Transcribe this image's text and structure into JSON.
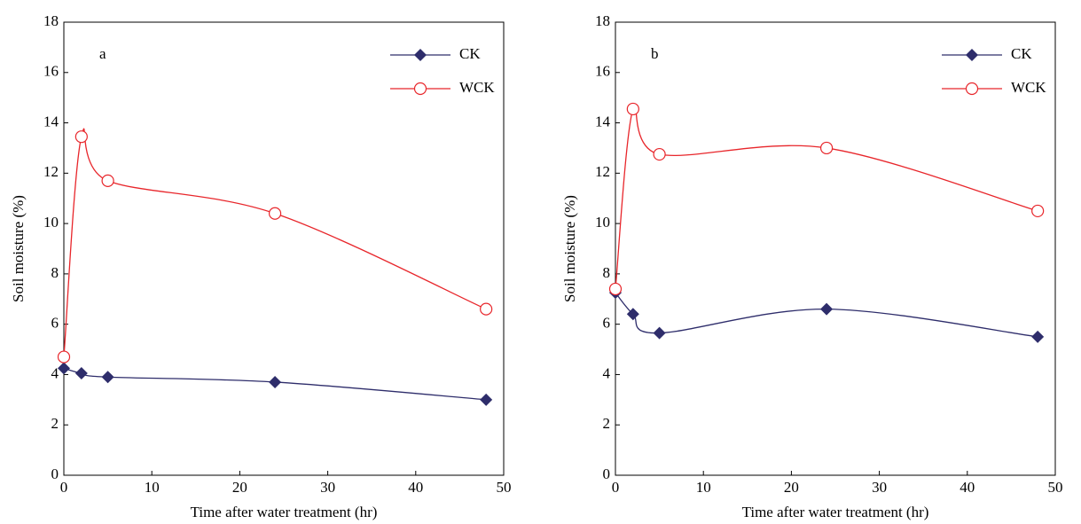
{
  "chart_data": [
    {
      "type": "line",
      "annotation": "a",
      "x": [
        0,
        2,
        5,
        24,
        48
      ],
      "series": [
        {
          "name": "CK",
          "color": "#2e2d6b",
          "marker": "diamond",
          "values": [
            4.25,
            4.05,
            3.9,
            3.7,
            3.0
          ]
        },
        {
          "name": "WCK",
          "color": "#e8262b",
          "marker": "open-circle",
          "values": [
            4.7,
            13.45,
            11.7,
            10.4,
            6.6
          ]
        }
      ],
      "xlim": [
        0,
        50
      ],
      "xticks": [
        0,
        10,
        20,
        30,
        40,
        50
      ],
      "ylim": [
        0,
        18
      ],
      "yticks": [
        0,
        2,
        4,
        6,
        8,
        10,
        12,
        14,
        16,
        18
      ],
      "xlabel": "Time after water treatment (hr)",
      "ylabel": "Soil moisture (%)",
      "legend": "upper right"
    },
    {
      "type": "line",
      "annotation": "b",
      "x": [
        0,
        2,
        5,
        24,
        48
      ],
      "series": [
        {
          "name": "CK",
          "color": "#2e2d6b",
          "marker": "diamond",
          "values": [
            7.25,
            6.4,
            5.65,
            6.6,
            5.5
          ]
        },
        {
          "name": "WCK",
          "color": "#e8262b",
          "marker": "open-circle",
          "values": [
            7.4,
            14.55,
            12.75,
            13.0,
            10.5
          ]
        }
      ],
      "xlim": [
        0,
        50
      ],
      "xticks": [
        0,
        10,
        20,
        30,
        40,
        50
      ],
      "ylim": [
        0,
        18
      ],
      "yticks": [
        0,
        2,
        4,
        6,
        8,
        10,
        12,
        14,
        16,
        18
      ],
      "xlabel": "Time after water treatment (hr)",
      "ylabel": "Soil moisture (%)",
      "legend": "upper right"
    }
  ]
}
